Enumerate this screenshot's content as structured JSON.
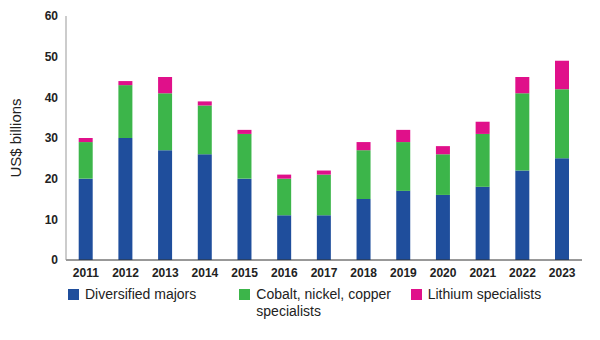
{
  "chart_data": {
    "type": "bar",
    "stacked": true,
    "grid": false,
    "legend": "bottom",
    "y_label": "US$ billions",
    "categories": [
      "2011",
      "2012",
      "2013",
      "2014",
      "2015",
      "2016",
      "2017",
      "2018",
      "2019",
      "2020",
      "2021",
      "2022",
      "2023"
    ],
    "ylim": [
      0,
      60
    ],
    "yticks": [
      0,
      10,
      20,
      30,
      40,
      50,
      60
    ],
    "series": [
      {
        "name": "Diversified majors",
        "color": "#1f4e9c",
        "values": [
          20,
          30,
          27,
          26,
          20,
          11,
          11,
          15,
          17,
          16,
          18,
          22,
          25
        ]
      },
      {
        "name": "Cobalt, nickel, copper specialists",
        "color": "#3cb54a",
        "values": [
          9,
          13,
          14,
          12,
          11,
          9,
          10,
          12,
          12,
          10,
          13,
          19,
          17
        ]
      },
      {
        "name": "Lithium specialists",
        "color": "#e0108a",
        "values": [
          1,
          1,
          4,
          1,
          1,
          1,
          1,
          2,
          3,
          2,
          3,
          4,
          7
        ]
      }
    ]
  }
}
